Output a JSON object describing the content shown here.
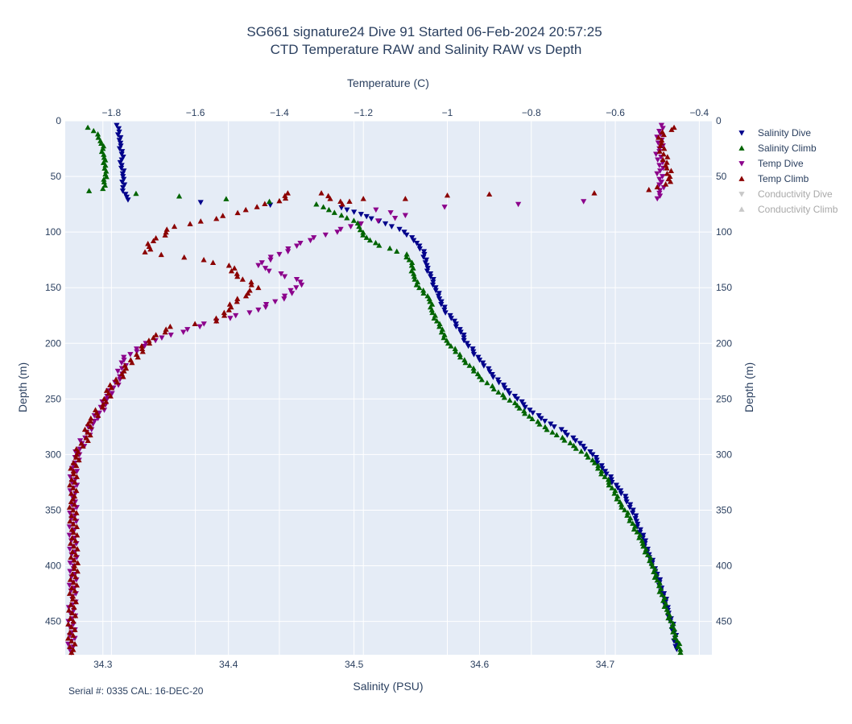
{
  "chart_data": {
    "type": "scatter",
    "title_line1": "SG661 signature24 Dive 91 Started 06-Feb-2024 20:57:25",
    "title_line2": "CTD Temperature RAW and Salinity RAW vs Depth",
    "xlabel_bottom": "Salinity (PSU)",
    "xlabel_top": "Temperature (C)",
    "ylabel_left": "Depth (m)",
    "ylabel_right": "Depth (m)",
    "footer": "Serial #: 0335  CAL: 16-DEC-20",
    "salinity_range": [
      34.27,
      34.785
    ],
    "temperature_range": [
      -1.91,
      -0.37
    ],
    "depth_range": [
      0,
      480
    ],
    "salinity_ticks": [
      "34.3",
      "34.4",
      "34.5",
      "34.6",
      "34.7"
    ],
    "temperature_ticks": [
      "−1.8",
      "−1.6",
      "−1.4",
      "−1.2",
      "−1",
      "−0.8",
      "−0.6",
      "−0.4"
    ],
    "depth_ticks": [
      "0",
      "50",
      "100",
      "150",
      "200",
      "250",
      "300",
      "350",
      "400",
      "450"
    ],
    "grid": true,
    "legend_position": "right",
    "legend": [
      {
        "name": "Salinity Dive",
        "color": "#00008b",
        "marker": "triangle-down",
        "active": true
      },
      {
        "name": "Salinity Climb",
        "color": "#006400",
        "marker": "triangle-up",
        "active": true
      },
      {
        "name": "Temp Dive",
        "color": "#8b008b",
        "marker": "triangle-down",
        "active": true
      },
      {
        "name": "Temp Climb",
        "color": "#8b0000",
        "marker": "triangle-up",
        "active": true
      },
      {
        "name": "Conductivity Dive",
        "color": "#c8c8c8",
        "marker": "triangle-down",
        "active": false
      },
      {
        "name": "Conductivity Climb",
        "color": "#c8c8c8",
        "marker": "triangle-up",
        "active": false
      }
    ],
    "series": [
      {
        "name": "Salinity Dive",
        "axis": "salinity",
        "color": "#00008b",
        "marker": "triangle-down",
        "points": [
          [
            34.311,
            4
          ],
          [
            34.313,
            10
          ],
          [
            34.314,
            20
          ],
          [
            34.315,
            30
          ],
          [
            34.315,
            40
          ],
          [
            34.316,
            50
          ],
          [
            34.316,
            60
          ],
          [
            34.318,
            66
          ],
          [
            34.32,
            71
          ],
          [
            34.49,
            78
          ],
          [
            34.5,
            82
          ],
          [
            34.51,
            86
          ],
          [
            34.52,
            90
          ],
          [
            34.53,
            95
          ],
          [
            34.54,
            100
          ],
          [
            34.55,
            110
          ],
          [
            34.556,
            120
          ],
          [
            34.558,
            130
          ],
          [
            34.561,
            140
          ],
          [
            34.565,
            150
          ],
          [
            34.568,
            160
          ],
          [
            34.572,
            170
          ],
          [
            34.58,
            180
          ],
          [
            34.585,
            190
          ],
          [
            34.59,
            200
          ],
          [
            34.6,
            215
          ],
          [
            34.61,
            228
          ],
          [
            34.62,
            240
          ],
          [
            34.63,
            250
          ],
          [
            34.64,
            260
          ],
          [
            34.652,
            270
          ],
          [
            34.668,
            280
          ],
          [
            34.68,
            290
          ],
          [
            34.69,
            300
          ],
          [
            34.7,
            315
          ],
          [
            34.71,
            330
          ],
          [
            34.72,
            345
          ],
          [
            34.725,
            360
          ],
          [
            34.73,
            375
          ],
          [
            34.735,
            390
          ],
          [
            34.74,
            405
          ],
          [
            34.745,
            420
          ],
          [
            34.75,
            440
          ],
          [
            34.755,
            460
          ],
          [
            34.757,
            475
          ]
        ]
      },
      {
        "name": "Salinity Climb",
        "axis": "salinity",
        "color": "#006400",
        "marker": "triangle-up",
        "points": [
          [
            34.76,
            478
          ],
          [
            34.756,
            462
          ],
          [
            34.75,
            442
          ],
          [
            34.743,
            418
          ],
          [
            34.737,
            398
          ],
          [
            34.73,
            380
          ],
          [
            34.722,
            362
          ],
          [
            34.713,
            345
          ],
          [
            34.703,
            325
          ],
          [
            34.69,
            305
          ],
          [
            34.675,
            292
          ],
          [
            34.658,
            280
          ],
          [
            34.642,
            268
          ],
          [
            34.63,
            256
          ],
          [
            34.615,
            244
          ],
          [
            34.6,
            230
          ],
          [
            34.588,
            215
          ],
          [
            34.575,
            200
          ],
          [
            34.568,
            185
          ],
          [
            34.562,
            170
          ],
          [
            34.56,
            160
          ],
          [
            34.552,
            150
          ],
          [
            34.548,
            140
          ],
          [
            34.546,
            130
          ],
          [
            34.542,
            120
          ],
          [
            34.52,
            112
          ],
          [
            34.51,
            105
          ],
          [
            34.505,
            98
          ],
          [
            34.503,
            92
          ],
          [
            34.49,
            85
          ],
          [
            34.48,
            80
          ],
          [
            34.47,
            75
          ],
          [
            34.289,
            63
          ],
          [
            34.3,
            61
          ],
          [
            34.301,
            55
          ],
          [
            34.302,
            48
          ],
          [
            34.302,
            40
          ],
          [
            34.301,
            33
          ],
          [
            34.3,
            25
          ],
          [
            34.298,
            18
          ],
          [
            34.296,
            12
          ],
          [
            34.288,
            6
          ]
        ]
      },
      {
        "name": "Temp Dive",
        "axis": "temperature",
        "color": "#8b008b",
        "marker": "triangle-down",
        "points": [
          [
            -0.49,
            4
          ],
          [
            -0.492,
            12
          ],
          [
            -0.495,
            25
          ],
          [
            -0.495,
            40
          ],
          [
            -0.49,
            55
          ],
          [
            -0.495,
            65
          ],
          [
            -0.5,
            70
          ],
          [
            -1.17,
            80
          ],
          [
            -1.1,
            85
          ],
          [
            -1.23,
            95
          ],
          [
            -1.35,
            110
          ],
          [
            -1.4,
            120
          ],
          [
            -1.45,
            130
          ],
          [
            -1.35,
            145
          ],
          [
            -1.37,
            155
          ],
          [
            -1.45,
            170
          ],
          [
            -1.55,
            180
          ],
          [
            -1.68,
            195
          ],
          [
            -1.74,
            205
          ],
          [
            -1.77,
            215
          ],
          [
            -1.78,
            230
          ],
          [
            -1.81,
            250
          ],
          [
            -1.84,
            270
          ],
          [
            -1.87,
            290
          ],
          [
            -1.89,
            310
          ],
          [
            -1.89,
            340
          ],
          [
            -1.892,
            370
          ],
          [
            -1.89,
            400
          ],
          [
            -1.893,
            430
          ],
          [
            -1.895,
            460
          ],
          [
            -1.895,
            478
          ]
        ]
      },
      {
        "name": "Temp Climb",
        "axis": "temperature",
        "color": "#8b0000",
        "marker": "triangle-up",
        "points": [
          [
            -1.895,
            478
          ],
          [
            -1.895,
            455
          ],
          [
            -1.892,
            430
          ],
          [
            -1.888,
            400
          ],
          [
            -1.89,
            370
          ],
          [
            -1.892,
            340
          ],
          [
            -1.89,
            315
          ],
          [
            -1.883,
            300
          ],
          [
            -1.86,
            285
          ],
          [
            -1.85,
            270
          ],
          [
            -1.82,
            255
          ],
          [
            -1.8,
            240
          ],
          [
            -1.77,
            225
          ],
          [
            -1.74,
            210
          ],
          [
            -1.7,
            195
          ],
          [
            -1.66,
            185
          ],
          [
            -1.55,
            180
          ],
          [
            -1.52,
            170
          ],
          [
            -1.5,
            160
          ],
          [
            -1.45,
            150
          ],
          [
            -1.5,
            140
          ],
          [
            -1.52,
            130
          ],
          [
            -1.58,
            125
          ],
          [
            -1.72,
            118
          ],
          [
            -1.7,
            108
          ],
          [
            -1.65,
            95
          ],
          [
            -1.55,
            88
          ],
          [
            -1.48,
            80
          ],
          [
            -1.4,
            72
          ],
          [
            -1.38,
            65
          ],
          [
            -1.3,
            65
          ],
          [
            -1.25,
            75
          ],
          [
            -1.2,
            70
          ],
          [
            -1.1,
            70
          ],
          [
            -1.0,
            67
          ],
          [
            -0.9,
            66
          ],
          [
            -0.65,
            65
          ],
          [
            -0.52,
            62
          ],
          [
            -0.48,
            57
          ],
          [
            -0.47,
            50
          ],
          [
            -0.48,
            40
          ],
          [
            -0.485,
            30
          ],
          [
            -0.49,
            20
          ],
          [
            -0.488,
            10
          ],
          [
            -0.46,
            6
          ]
        ]
      }
    ]
  }
}
